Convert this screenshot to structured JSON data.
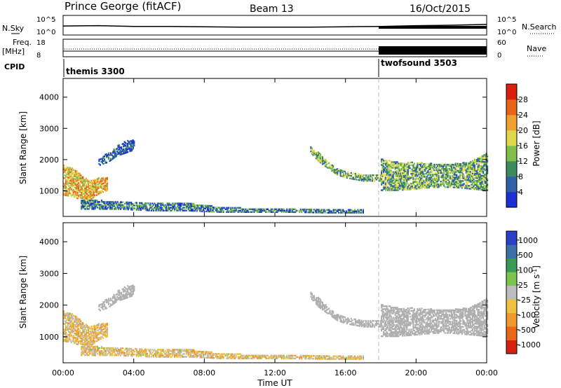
{
  "header": {
    "station": "Prince George (fitACF)",
    "beam": "Beam 13",
    "date": "16/Oct/2015"
  },
  "strip": {
    "nsky_label": "N.Sky",
    "nsearch_label": "N.Search",
    "freq_label_1": "Freq.",
    "freq_label_2": "[MHz]",
    "nave_label": "Nave",
    "cpid_label": "CPID",
    "noise_ticks_left": [
      "10^5",
      "10^0"
    ],
    "noise_ticks_right": [
      "10^5",
      "10^0"
    ],
    "freq_ticks": [
      "18",
      "8"
    ],
    "nave_ticks": [
      "60",
      "0"
    ]
  },
  "cpid": [
    {
      "name": "themis 3300",
      "start_hour": 0
    },
    {
      "name": "twofsound 3503",
      "start_hour": 18
    }
  ],
  "colors": {
    "power_scale": [
      "#1a2fd6",
      "#2f5fa8",
      "#3d8a5c",
      "#7fbf4a",
      "#e0d84a",
      "#f0a030",
      "#e86418",
      "#d8200c"
    ],
    "velocity_scale": [
      "#2a40c8",
      "#3c70a8",
      "#3a9a55",
      "#7cc44a",
      "#bcbcbc",
      "#f0c040",
      "#f09830",
      "#e86818",
      "#d82010"
    ],
    "ground_scatter": "#b0b0b0"
  },
  "chart_data": [
    {
      "type": "line",
      "title": "N.Sky",
      "x_range": [
        0,
        24
      ],
      "ylim_log10": [
        0,
        5
      ],
      "x": [
        0,
        2,
        4,
        6,
        8,
        10,
        12,
        14,
        16,
        18,
        20,
        22,
        24
      ],
      "y": [
        2.3,
        2.4,
        2.2,
        2.2,
        2.1,
        2.0,
        2.0,
        2.0,
        2.1,
        2.2,
        2.4,
        2.5,
        2.7
      ]
    },
    {
      "type": "line",
      "title": "Freq.",
      "x_range": [
        0,
        24
      ],
      "ylim": [
        8,
        18
      ],
      "x": [
        0,
        6,
        12,
        18,
        24
      ],
      "y": [
        10.5,
        10.5,
        10.5,
        10.5,
        10.5
      ]
    },
    {
      "type": "heatmap",
      "title": "Power [dB]",
      "xlabel": "Time UT",
      "ylabel": "Slant Range [km]",
      "x_range": [
        0,
        24
      ],
      "ylim": [
        180,
        4600
      ],
      "x_ticks": [
        "00:00",
        "04:00",
        "08:00",
        "12:00",
        "16:00",
        "20:00",
        "00:00"
      ],
      "y_ticks": [
        1000,
        2000,
        3000,
        4000
      ],
      "colorbar": {
        "label": "Power [dB]",
        "ticks": [
          4,
          8,
          12,
          16,
          20,
          24,
          28
        ],
        "range": [
          0,
          32
        ]
      },
      "scatter_bands": [
        {
          "t": [
            0,
            0.5,
            1.0,
            1.5,
            2.0,
            2.5
          ],
          "range_lo": [
            850,
            800,
            700,
            700,
            900,
            1000
          ],
          "range_hi": [
            1800,
            1700,
            1500,
            1300,
            1400,
            1400
          ],
          "power": 24
        },
        {
          "t": [
            2.0,
            2.5,
            3.0,
            3.5,
            4.0
          ],
          "range_lo": [
            1800,
            1900,
            2100,
            2200,
            2300
          ],
          "range_hi": [
            2000,
            2200,
            2400,
            2600,
            2600
          ],
          "power": 8
        },
        {
          "t": [
            1,
            3,
            5,
            7,
            9,
            11,
            13,
            15,
            17
          ],
          "range_lo": [
            400,
            400,
            350,
            350,
            300,
            300,
            300,
            280,
            280
          ],
          "range_hi": [
            700,
            650,
            600,
            600,
            450,
            420,
            400,
            400,
            380
          ],
          "power": 12
        },
        {
          "t": [
            14.0,
            14.5,
            15.0,
            15.5,
            16.0,
            16.5,
            17.0,
            17.5,
            18.0
          ],
          "range_lo": [
            2200,
            1900,
            1700,
            1500,
            1400,
            1350,
            1300,
            1300,
            1300
          ],
          "range_hi": [
            2400,
            2200,
            1900,
            1700,
            1600,
            1550,
            1500,
            1500,
            1500
          ],
          "power": 14
        },
        {
          "t": [
            18,
            19,
            20,
            21,
            22,
            23,
            24
          ],
          "range_lo": [
            1000,
            1000,
            1050,
            1100,
            1100,
            1050,
            1000
          ],
          "range_hi": [
            2000,
            1900,
            1900,
            1850,
            1850,
            1900,
            2200
          ],
          "power": 16
        }
      ]
    },
    {
      "type": "heatmap",
      "title": "Velocity [m s-1]",
      "xlabel": "Time UT",
      "ylabel": "Slant Range [km]",
      "x_range": [
        0,
        24
      ],
      "ylim": [
        180,
        4600
      ],
      "x_ticks": [
        "00:00",
        "04:00",
        "08:00",
        "12:00",
        "16:00",
        "20:00",
        "00:00"
      ],
      "y_ticks": [
        1000,
        2000,
        3000,
        4000
      ],
      "colorbar": {
        "label": "Velocity [m s^-1]",
        "ticks": [
          "1000",
          "500",
          "100",
          "25",
          "-25",
          "-100",
          "-500",
          "-1000"
        ]
      },
      "scatter_bands": [
        {
          "t": [
            0,
            0.5,
            1.0,
            1.5,
            2.0,
            2.5
          ],
          "range_lo": [
            850,
            800,
            700,
            700,
            900,
            1000
          ],
          "range_hi": [
            1800,
            1700,
            1500,
            1300,
            1400,
            1400
          ],
          "velocity": "-100"
        },
        {
          "t": [
            2.0,
            2.5,
            3.0,
            3.5,
            4.0
          ],
          "range_lo": [
            1800,
            1900,
            2100,
            2200,
            2300
          ],
          "range_hi": [
            2000,
            2200,
            2400,
            2600,
            2600
          ],
          "velocity": "ground"
        },
        {
          "t": [
            1,
            3,
            5,
            7,
            9,
            11,
            13,
            15,
            17
          ],
          "range_lo": [
            400,
            400,
            350,
            350,
            300,
            300,
            300,
            280,
            280
          ],
          "range_hi": [
            700,
            650,
            600,
            600,
            450,
            420,
            400,
            400,
            380
          ],
          "velocity": "-100"
        },
        {
          "t": [
            14.0,
            14.5,
            15.0,
            15.5,
            16.0,
            16.5,
            17.0,
            17.5,
            18.0
          ],
          "range_lo": [
            2200,
            1900,
            1700,
            1500,
            1400,
            1350,
            1300,
            1300,
            1300
          ],
          "range_hi": [
            2400,
            2200,
            1900,
            1700,
            1600,
            1550,
            1500,
            1500,
            1500
          ],
          "velocity": "ground"
        },
        {
          "t": [
            18,
            19,
            20,
            21,
            22,
            23,
            24
          ],
          "range_lo": [
            1000,
            1000,
            1050,
            1100,
            1100,
            1050,
            1000
          ],
          "range_hi": [
            2000,
            1900,
            1900,
            1850,
            1850,
            1900,
            2200
          ],
          "velocity": "ground"
        }
      ]
    }
  ]
}
